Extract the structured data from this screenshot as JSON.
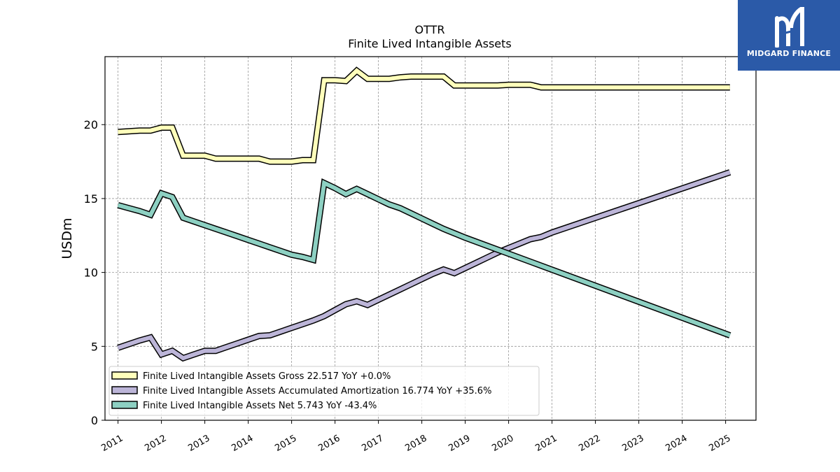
{
  "brand": {
    "name": "MIDGARD FINANCE",
    "bg_color": "#2b5aa8"
  },
  "chart_data": {
    "type": "line",
    "title": "OTTR",
    "subtitle": "Finite Lived Intangible Assets",
    "ylabel": "USDm",
    "xlabel": "",
    "ylim": [
      0,
      24.6
    ],
    "xlim": [
      2010.7,
      2025.7
    ],
    "yticks": [
      0,
      5,
      10,
      15,
      20
    ],
    "xticks": [
      "2011",
      "2012",
      "2013",
      "2014",
      "2015",
      "2016",
      "2017",
      "2018",
      "2019",
      "2020",
      "2021",
      "2022",
      "2023",
      "2024",
      "2025"
    ],
    "grid": true,
    "legend_position": "lower-left",
    "series": [
      {
        "name": "Finite Lived Intangible Assets Gross",
        "legend_label": "Finite Lived Intangible Assets Gross  22.517 YoY +0.0%",
        "color": "#ffffbb",
        "x": [
          2011.0,
          2011.25,
          2011.5,
          2011.75,
          2012.0,
          2012.25,
          2012.5,
          2012.75,
          2013.0,
          2013.25,
          2013.5,
          2013.75,
          2014.0,
          2014.25,
          2014.5,
          2014.75,
          2015.0,
          2015.25,
          2015.5,
          2015.75,
          2016.0,
          2016.25,
          2016.5,
          2016.75,
          2017.0,
          2017.25,
          2017.5,
          2017.75,
          2018.0,
          2018.25,
          2018.5,
          2018.75,
          2019.0,
          2019.25,
          2019.5,
          2019.75,
          2020.0,
          2020.25,
          2020.5,
          2020.75,
          2021.0,
          2025.1
        ],
        "y": [
          19.5,
          19.55,
          19.6,
          19.6,
          19.8,
          19.8,
          17.9,
          17.9,
          17.9,
          17.7,
          17.7,
          17.7,
          17.7,
          17.7,
          17.5,
          17.5,
          17.5,
          17.6,
          17.6,
          23.0,
          23.0,
          22.95,
          23.65,
          23.1,
          23.1,
          23.1,
          23.2,
          23.25,
          23.25,
          23.25,
          23.25,
          22.65,
          22.65,
          22.65,
          22.65,
          22.65,
          22.7,
          22.7,
          22.7,
          22.517,
          22.517,
          22.517
        ]
      },
      {
        "name": "Finite Lived Intangible Assets Accumulated Amortization",
        "legend_label": "Finite Lived Intangible Assets Accumulated Amortization  16.774 YoY +35.6%",
        "color": "#bcb5d8",
        "x": [
          2011.0,
          2011.25,
          2011.5,
          2011.75,
          2012.0,
          2012.25,
          2012.5,
          2012.75,
          2013.0,
          2013.25,
          2013.5,
          2013.75,
          2014.0,
          2014.25,
          2014.5,
          2014.75,
          2015.0,
          2015.25,
          2015.5,
          2015.75,
          2016.0,
          2016.25,
          2016.5,
          2016.75,
          2017.0,
          2017.25,
          2017.5,
          2017.75,
          2018.0,
          2018.25,
          2018.5,
          2018.75,
          2019.0,
          2019.25,
          2019.5,
          2019.75,
          2020.0,
          2020.25,
          2020.5,
          2020.75,
          2021.0,
          2025.1
        ],
        "y": [
          4.9,
          5.15,
          5.4,
          5.6,
          4.45,
          4.7,
          4.2,
          4.45,
          4.7,
          4.7,
          4.95,
          5.2,
          5.45,
          5.7,
          5.75,
          6.0,
          6.25,
          6.5,
          6.75,
          7.05,
          7.45,
          7.85,
          8.05,
          7.8,
          8.15,
          8.5,
          8.85,
          9.2,
          9.55,
          9.9,
          10.2,
          9.95,
          10.3,
          10.65,
          11.0,
          11.35,
          11.65,
          11.95,
          12.25,
          12.4,
          12.7,
          16.774
        ]
      },
      {
        "name": "Finite Lived Intangible Assets Net",
        "legend_label": "Finite Lived Intangible Assets Net  5.743 YoY -43.4%",
        "color": "#8dd0c2",
        "x": [
          2011.0,
          2011.25,
          2011.5,
          2011.75,
          2012.0,
          2012.25,
          2012.5,
          2012.75,
          2013.0,
          2013.25,
          2013.5,
          2013.75,
          2014.0,
          2014.25,
          2014.5,
          2014.75,
          2015.0,
          2015.25,
          2015.5,
          2015.75,
          2016.0,
          2016.25,
          2016.5,
          2016.75,
          2017.0,
          2017.25,
          2017.5,
          2017.75,
          2018.0,
          2018.25,
          2018.5,
          2018.75,
          2019.0,
          2025.1
        ],
        "y": [
          14.55,
          14.35,
          14.15,
          13.9,
          15.35,
          15.1,
          13.7,
          13.45,
          13.2,
          12.95,
          12.7,
          12.45,
          12.2,
          11.95,
          11.7,
          11.45,
          11.2,
          11.05,
          10.85,
          16.05,
          15.7,
          15.3,
          15.65,
          15.3,
          14.95,
          14.6,
          14.35,
          14.0,
          13.65,
          13.3,
          12.95,
          12.65,
          12.35,
          5.743
        ]
      }
    ]
  }
}
